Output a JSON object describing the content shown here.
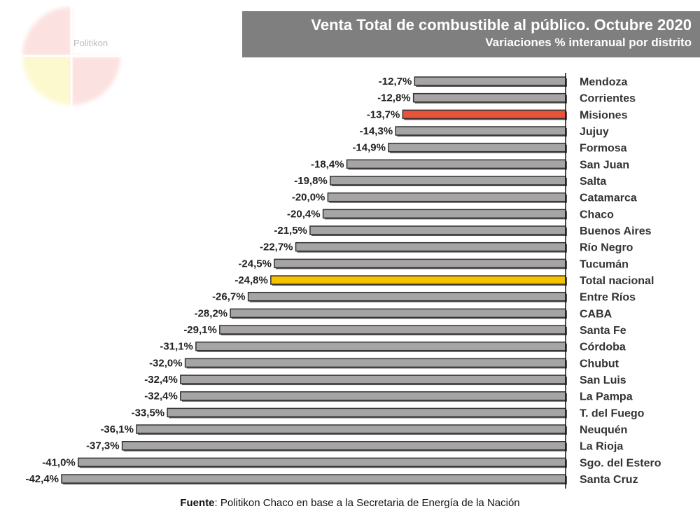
{
  "logo": {
    "text": "Politikon"
  },
  "chart_data": {
    "type": "bar",
    "orientation": "horizontal",
    "title": "Venta Total de combustible al público. Octubre 2020",
    "subtitle": "Variaciones % interanual por distrito",
    "categories": [
      "Mendoza",
      "Corrientes",
      "Misiones",
      "Jujuy",
      "Formosa",
      "San Juan",
      "Salta",
      "Catamarca",
      "Chaco",
      "Buenos Aires",
      "Río Negro",
      "Tucumán",
      "Total nacional",
      "Entre Ríos",
      "CABA",
      "Santa Fe",
      "Córdoba",
      "Chubut",
      "San Luis",
      "La Pampa",
      "T. del Fuego",
      "Neuquén",
      "La Rioja",
      "Sgo. del Estero",
      "Santa Cruz"
    ],
    "values": [
      -12.7,
      -12.8,
      -13.7,
      -14.3,
      -14.9,
      -18.4,
      -19.8,
      -20.0,
      -20.4,
      -21.5,
      -22.7,
      -24.5,
      -24.8,
      -26.7,
      -28.2,
      -29.1,
      -31.1,
      -32.0,
      -32.4,
      -32.4,
      -33.5,
      -36.1,
      -37.3,
      -41.0,
      -42.4
    ],
    "labels": [
      "-12,7%",
      "-12,8%",
      "-13,7%",
      "-14,3%",
      "-14,9%",
      "-18,4%",
      "-19,8%",
      "-20,0%",
      "-20,4%",
      "-21,5%",
      "-22,7%",
      "-24,5%",
      "-24,8%",
      "-26,7%",
      "-28,2%",
      "-29,1%",
      "-31,1%",
      "-32,0%",
      "-32,4%",
      "-32,4%",
      "-33,5%",
      "-36,1%",
      "-37,3%",
      "-41,0%",
      "-42,4%"
    ],
    "highlights": {
      "Misiones": "#e8533a",
      "Total nacional": "#f5c200"
    },
    "default_color": "#a6a4a4",
    "xlim": [
      -42.4,
      0
    ],
    "xlabel": "",
    "ylabel": "",
    "grid": false,
    "legend": "none"
  },
  "source": {
    "label": "Fuente",
    "text": ": Politikon Chaco en base a la Secretaria de Energía de la Nación"
  }
}
